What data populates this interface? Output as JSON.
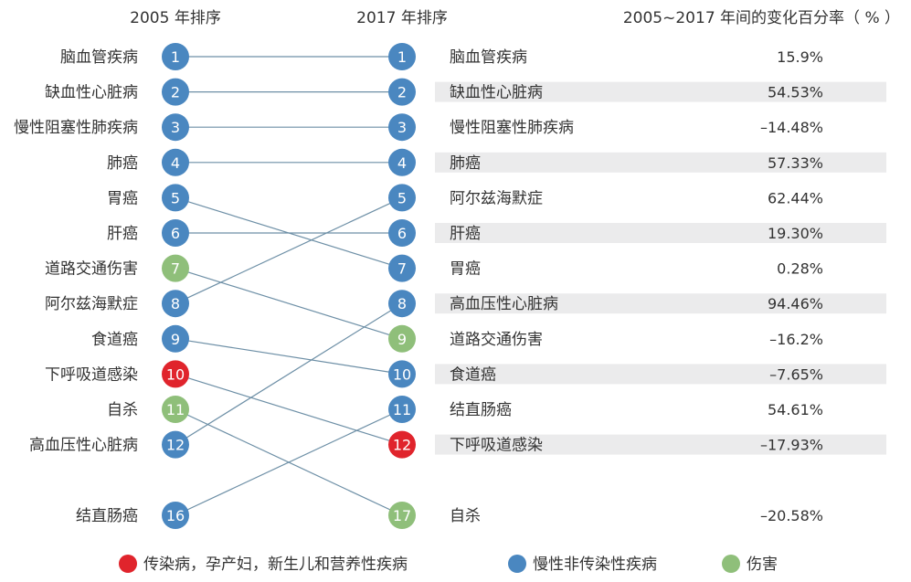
{
  "headers": {
    "left": "2005 年排序",
    "middle": "2017 年排序",
    "right": "2005~2017 年间的变化百分率（ % ）"
  },
  "colors": {
    "communicable": "#e0242c",
    "ncd": "#4a87c0",
    "injury": "#8fbf7a",
    "line": "#6d8fa6",
    "stripe": "#ebebec"
  },
  "chart_data": {
    "type": "slope",
    "left_column": [
      {
        "rank": "1",
        "label": "脑血管疾病",
        "category": "ncd"
      },
      {
        "rank": "2",
        "label": "缺血性心脏病",
        "category": "ncd"
      },
      {
        "rank": "3",
        "label": "慢性阻塞性肺疾病",
        "category": "ncd"
      },
      {
        "rank": "4",
        "label": "肺癌",
        "category": "ncd"
      },
      {
        "rank": "5",
        "label": "胃癌",
        "category": "ncd"
      },
      {
        "rank": "6",
        "label": "肝癌",
        "category": "ncd"
      },
      {
        "rank": "7",
        "label": "道路交通伤害",
        "category": "injury"
      },
      {
        "rank": "8",
        "label": "阿尔兹海默症",
        "category": "ncd"
      },
      {
        "rank": "9",
        "label": "食道癌",
        "category": "ncd"
      },
      {
        "rank": "10",
        "label": "下呼吸道感染",
        "category": "communicable"
      },
      {
        "rank": "11",
        "label": "自杀",
        "category": "injury"
      },
      {
        "rank": "12",
        "label": "高血压性心脏病",
        "category": "ncd"
      },
      {
        "rank": "16",
        "label": "结直肠癌",
        "category": "ncd"
      }
    ],
    "right_column": [
      {
        "rank": "1",
        "label": "脑血管疾病",
        "category": "ncd",
        "change": "15.9%"
      },
      {
        "rank": "2",
        "label": "缺血性心脏病",
        "category": "ncd",
        "change": "54.53%"
      },
      {
        "rank": "3",
        "label": "慢性阻塞性肺疾病",
        "category": "ncd",
        "change": "–14.48%"
      },
      {
        "rank": "4",
        "label": "肺癌",
        "category": "ncd",
        "change": "57.33%"
      },
      {
        "rank": "5",
        "label": "阿尔兹海默症",
        "category": "ncd",
        "change": "62.44%"
      },
      {
        "rank": "6",
        "label": "肝癌",
        "category": "ncd",
        "change": "19.30%"
      },
      {
        "rank": "7",
        "label": "胃癌",
        "category": "ncd",
        "change": "0.28%"
      },
      {
        "rank": "8",
        "label": "高血压性心脏病",
        "category": "ncd",
        "change": "94.46%"
      },
      {
        "rank": "9",
        "label": "道路交通伤害",
        "category": "injury",
        "change": "–16.2%"
      },
      {
        "rank": "10",
        "label": "食道癌",
        "category": "ncd",
        "change": "–7.65%"
      },
      {
        "rank": "11",
        "label": "结直肠癌",
        "category": "ncd",
        "change": "54.61%"
      },
      {
        "rank": "12",
        "label": "下呼吸道感染",
        "category": "communicable",
        "change": "–17.93%"
      },
      {
        "rank": "17",
        "label": "自杀",
        "category": "injury",
        "change": "–20.58%"
      }
    ],
    "links": [
      [
        0,
        0
      ],
      [
        1,
        1
      ],
      [
        2,
        2
      ],
      [
        3,
        3
      ],
      [
        4,
        6
      ],
      [
        5,
        5
      ],
      [
        6,
        8
      ],
      [
        7,
        4
      ],
      [
        8,
        9
      ],
      [
        9,
        11
      ],
      [
        10,
        12
      ],
      [
        11,
        7
      ],
      [
        12,
        10
      ]
    ]
  },
  "legend": [
    {
      "category": "communicable",
      "label": "传染病，孕产妇，新生儿和营养性疾病"
    },
    {
      "category": "ncd",
      "label": "慢性非传染性疾病"
    },
    {
      "category": "injury",
      "label": "伤害"
    }
  ]
}
